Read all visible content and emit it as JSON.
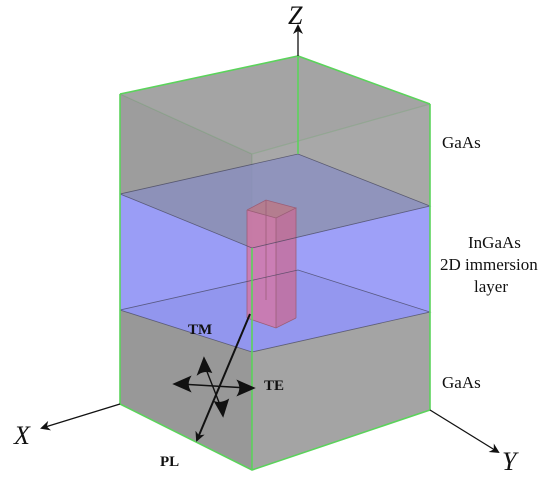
{
  "axes": {
    "x": "X",
    "y": "Y",
    "z": "Z"
  },
  "layers": {
    "top": "GaAs",
    "middle": [
      "InGaAs",
      "2D immersion",
      "layer"
    ],
    "bottom": "GaAs"
  },
  "polarization": {
    "tm": "TM",
    "te": "TE",
    "pl": "PL"
  },
  "colors": {
    "gaas": "#8f8f8f",
    "ingaas": "#8f92f5",
    "nanowire": "#d9739f",
    "edges": "#5bd35b",
    "axes": "#111111"
  }
}
